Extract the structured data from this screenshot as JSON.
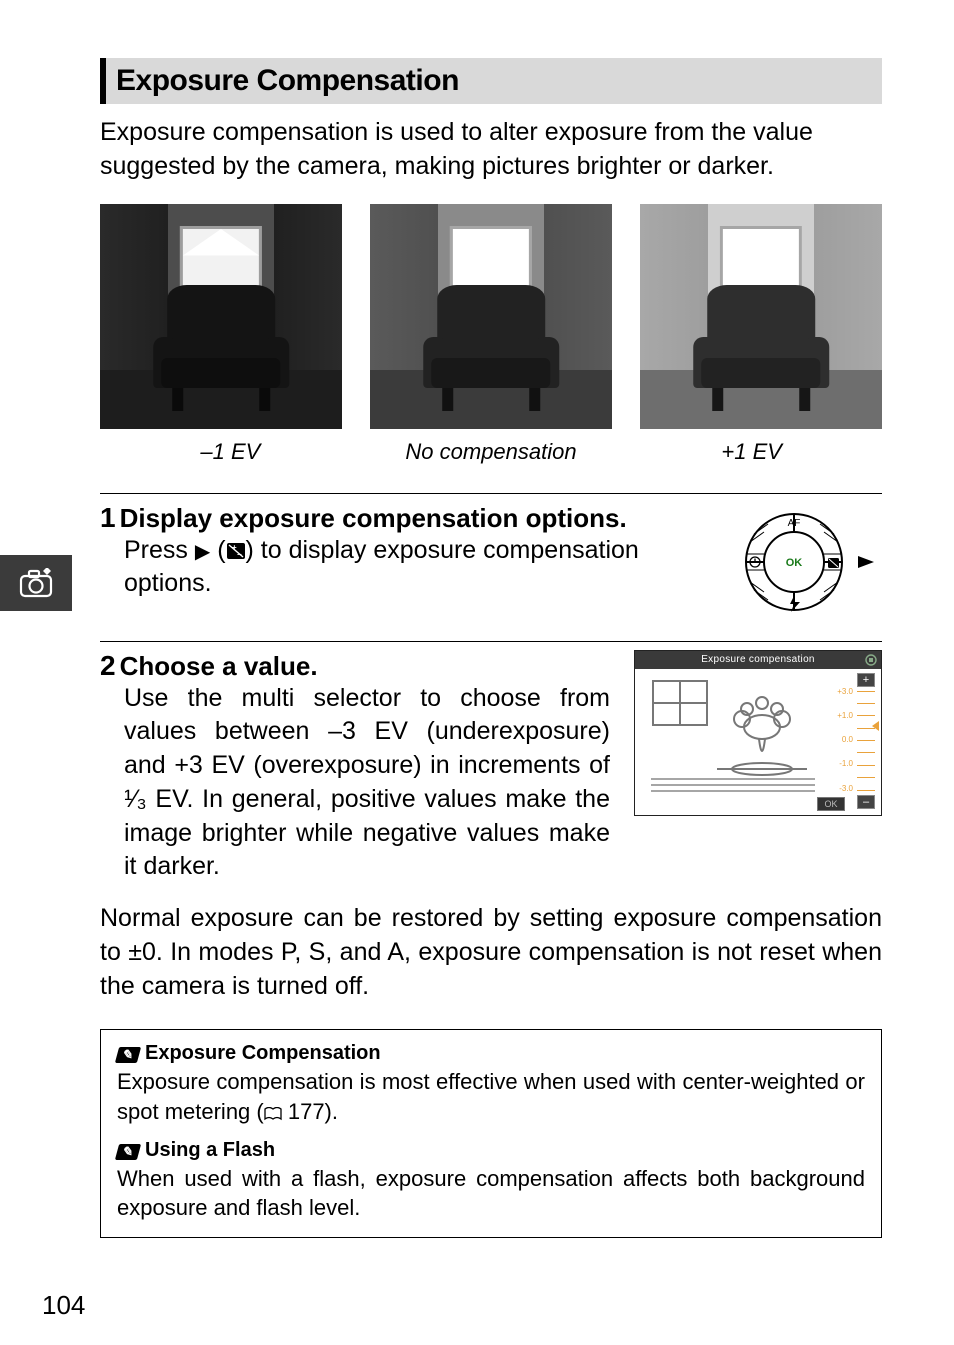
{
  "section": {
    "title": "Exposure Compensation"
  },
  "intro": "Exposure compensation is used to alter exposure from the value suggested by the camera, making pictures brighter or darker.",
  "figures": {
    "captions": [
      "–1 EV",
      "No compensation",
      "+1 EV"
    ],
    "tones": {
      "dark": {
        "wallL": "#2a2a2a",
        "wallR": "#2a2a2a",
        "wallC": "#4d4d4d",
        "floor": "#1d1d1d",
        "chair": "#141414",
        "seat": "#0e0e0e",
        "leg": "#0a0a0a",
        "window": "#f2f2f2"
      },
      "mid": {
        "wallL": "#5a5a5a",
        "wallR": "#5a5a5a",
        "wallC": "#8a8a8a",
        "floor": "#3b3b3b",
        "chair": "#222222",
        "seat": "#181818",
        "leg": "#111111",
        "window": "#ffffff"
      },
      "light": {
        "wallL": "#a8a8a8",
        "wallR": "#a8a8a8",
        "wallC": "#cfcfcf",
        "floor": "#6e6e6e",
        "chair": "#2e2e2e",
        "seat": "#222222",
        "leg": "#161616",
        "window": "#ffffff"
      }
    }
  },
  "steps": {
    "s1": {
      "num": "1",
      "title": "Display exposure compensation options.",
      "body_pre": "Press ",
      "body_post": " to display exposure compensation options.",
      "glyph_arrow": "▶",
      "glyph_paren_open": " (",
      "glyph_ev": "⧉",
      "glyph_paren_close": ")"
    },
    "s2": {
      "num": "2",
      "title": "Choose a value.",
      "body": "Use the multi selector to choose from values between –3 EV (underexposure) and +3 EV (overexposure) in increments of ¹⁄₃ EV. In general, positive values make the image brighter while negative values make it darker."
    }
  },
  "screen": {
    "title": "Exposure compensation",
    "scale_labels": [
      "+3.0",
      "+1.0",
      "0.0",
      "-1.0",
      "-3.0"
    ],
    "ok": "OK",
    "plus": "+",
    "minus": "–"
  },
  "para_after": "Normal exposure can be restored by setting exposure compensation to ±0. In modes P, S, and A, exposure compensation is not reset when the camera is turned off.",
  "notes": {
    "n1": {
      "title": "Exposure Compensation",
      "body_pre": "Exposure compensation is most effective when used with center-weighted or spot metering (",
      "page_icon": "▢",
      "page_ref": " 177).",
      "book_glyph": "📖"
    },
    "n2": {
      "title": "Using a Flash",
      "body": "When used with a flash, exposure compensation affects both background exposure and flash level."
    }
  },
  "pageNumber": "104",
  "colors": {
    "bar_bg": "#d9d9d9",
    "tab_bg": "#3b3b3b",
    "accent": "#e9a23b"
  }
}
